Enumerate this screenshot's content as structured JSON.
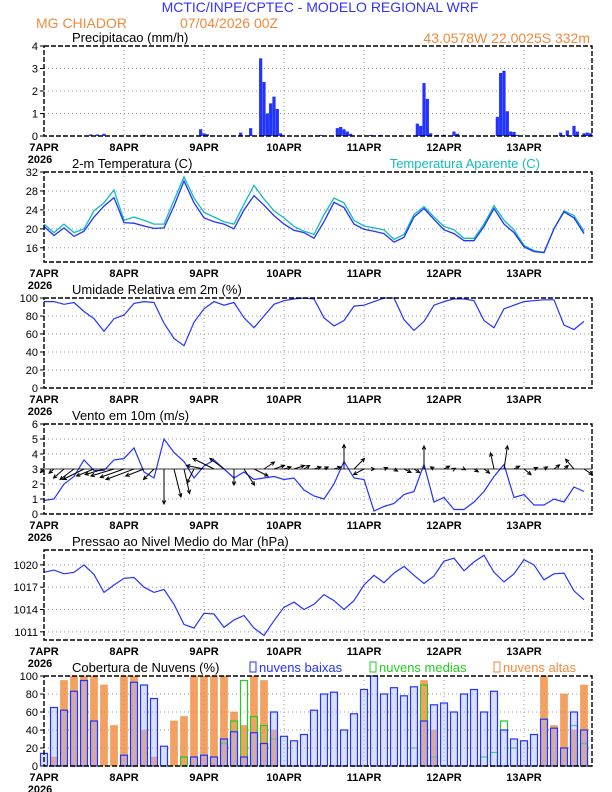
{
  "header": {
    "title": "MCTIC/INPE/CPTEC - MODELO REGIONAL WRF",
    "location": "MG CHIADOR",
    "run": "07/04/2026 00Z",
    "coords": "43.0578W 22.0025S 332m",
    "title_color": "#3333ff",
    "sub_color": "#f08a3c"
  },
  "chart_data": {
    "x_tick_labels": [
      "7APR",
      "8APR",
      "9APR",
      "10APR",
      "11APR",
      "12APR",
      "13APR"
    ],
    "x_year_label": "2026",
    "x_range": [
      "2026-04-07T00Z",
      "2026-04-13T20Z"
    ],
    "grid": true,
    "times": [
      "2026-04-07T00Z",
      "2026-04-07T03Z",
      "2026-04-07T06Z",
      "2026-04-07T09Z",
      "2026-04-07T12Z",
      "2026-04-07T15Z",
      "2026-04-07T18Z",
      "2026-04-07T21Z",
      "2026-04-08T00Z",
      "2026-04-08T03Z",
      "2026-04-08T06Z",
      "2026-04-08T09Z",
      "2026-04-08T12Z",
      "2026-04-08T15Z",
      "2026-04-08T18Z",
      "2026-04-08T21Z",
      "2026-04-09T00Z",
      "2026-04-09T03Z",
      "2026-04-09T06Z",
      "2026-04-09T09Z",
      "2026-04-09T12Z",
      "2026-04-09T15Z",
      "2026-04-09T18Z",
      "2026-04-09T21Z",
      "2026-04-10T00Z",
      "2026-04-10T03Z",
      "2026-04-10T06Z",
      "2026-04-10T09Z",
      "2026-04-10T12Z",
      "2026-04-10T15Z",
      "2026-04-10T18Z",
      "2026-04-10T21Z",
      "2026-04-11T00Z",
      "2026-04-11T03Z",
      "2026-04-11T06Z",
      "2026-04-11T09Z",
      "2026-04-11T12Z",
      "2026-04-11T15Z",
      "2026-04-11T18Z",
      "2026-04-11T21Z",
      "2026-04-12T00Z",
      "2026-04-12T03Z",
      "2026-04-12T06Z",
      "2026-04-12T09Z",
      "2026-04-12T12Z",
      "2026-04-12T15Z",
      "2026-04-12T18Z",
      "2026-04-12T21Z",
      "2026-04-13T00Z",
      "2026-04-13T03Z",
      "2026-04-13T06Z",
      "2026-04-13T09Z",
      "2026-04-13T12Z",
      "2026-04-13T15Z",
      "2026-04-13T18Z"
    ],
    "precip": {
      "type": "bar",
      "title": "Precipitacao (mm/h)",
      "ylim": [
        0,
        4
      ],
      "yticks": [
        "0",
        "1",
        "2",
        "3",
        "4"
      ],
      "color": "#2233ff",
      "points": [
        [
          "2026-04-07T14Z",
          0.07
        ],
        [
          "2026-04-07T16Z",
          0.07
        ],
        [
          "2026-04-07T18Z",
          0.1
        ],
        [
          "2026-04-08T06Z",
          0.05
        ],
        [
          "2026-04-08T23Z",
          0.3
        ],
        [
          "2026-04-09T00Z",
          0.12
        ],
        [
          "2026-04-09T01Z",
          0.08
        ],
        [
          "2026-04-09T11Z",
          0.15
        ],
        [
          "2026-04-09T14Z",
          0.35
        ],
        [
          "2026-04-09T17Z",
          3.45
        ],
        [
          "2026-04-09T18Z",
          2.4
        ],
        [
          "2026-04-09T19Z",
          1.0
        ],
        [
          "2026-04-09T20Z",
          1.45
        ],
        [
          "2026-04-09T21Z",
          1.75
        ],
        [
          "2026-04-09T22Z",
          1.2
        ],
        [
          "2026-04-09T23Z",
          0.12
        ],
        [
          "2026-04-10T11Z",
          0.05
        ],
        [
          "2026-04-10T16Z",
          0.35
        ],
        [
          "2026-04-10T17Z",
          0.4
        ],
        [
          "2026-04-10T18Z",
          0.3
        ],
        [
          "2026-04-10T19Z",
          0.2
        ],
        [
          "2026-04-10T20Z",
          0.1
        ],
        [
          "2026-04-11T02Z",
          0.05
        ],
        [
          "2026-04-11T05Z",
          0.05
        ],
        [
          "2026-04-11T16Z",
          0.55
        ],
        [
          "2026-04-11T17Z",
          0.45
        ],
        [
          "2026-04-11T18Z",
          2.35
        ],
        [
          "2026-04-11T19Z",
          1.65
        ],
        [
          "2026-04-11T20Z",
          0.12
        ],
        [
          "2026-04-11T22Z",
          0.05
        ],
        [
          "2026-04-12T00Z",
          0.05
        ],
        [
          "2026-04-12T03Z",
          0.2
        ],
        [
          "2026-04-12T04Z",
          0.1
        ],
        [
          "2026-04-12T16Z",
          0.85
        ],
        [
          "2026-04-12T17Z",
          2.8
        ],
        [
          "2026-04-12T18Z",
          2.9
        ],
        [
          "2026-04-12T19Z",
          1.1
        ],
        [
          "2026-04-12T20Z",
          0.2
        ],
        [
          "2026-04-12T21Z",
          0.18
        ],
        [
          "2026-04-12T22Z",
          0.05
        ],
        [
          "2026-04-13T11Z",
          0.15
        ],
        [
          "2026-04-13T13Z",
          0.25
        ],
        [
          "2026-04-13T15Z",
          0.45
        ],
        [
          "2026-04-13T16Z",
          0.2
        ],
        [
          "2026-04-13T18Z",
          0.12
        ],
        [
          "2026-04-13T19Z",
          0.15
        ],
        [
          "2026-04-13T20Z",
          0.12
        ]
      ]
    },
    "temperature": {
      "type": "line",
      "title": "2-m Temperatura (C)",
      "ylim": [
        13,
        32
      ],
      "yticks": [
        "16",
        "20",
        "24",
        "28",
        "32"
      ],
      "series": [
        {
          "name": "2-m Temperatura (C)",
          "color": "#2233ff",
          "values": [
            20.5,
            18.6,
            20.2,
            18.4,
            19.5,
            22.5,
            24.8,
            26.6,
            21.3,
            21.2,
            20.6,
            20.1,
            20.2,
            24.8,
            30.1,
            25.5,
            22.3,
            21.5,
            21.0,
            20.0,
            24.0,
            27.0,
            25.0,
            22.8,
            21.0,
            19.7,
            19.2,
            18.0,
            21.5,
            25.6,
            24.5,
            21.0,
            19.9,
            19.5,
            19.0,
            17.2,
            18.2,
            22.5,
            24.3,
            22.0,
            19.8,
            19.0,
            17.5,
            17.5,
            20.5,
            24.3,
            21.0,
            19.2,
            16.2,
            15.2,
            15.0,
            20.0,
            23.6,
            22.3,
            19.0
          ]
        },
        {
          "name": "Temperatura Aparente (C)",
          "color": "#11bbbb",
          "values": [
            21.0,
            19.2,
            21.0,
            19.2,
            20.0,
            23.8,
            25.5,
            28.2,
            21.8,
            22.5,
            21.8,
            21.0,
            21.0,
            26.0,
            31.0,
            26.5,
            23.5,
            22.5,
            21.5,
            21.0,
            25.2,
            29.2,
            26.3,
            23.8,
            22.3,
            20.5,
            19.5,
            18.8,
            23.0,
            26.5,
            25.5,
            21.8,
            20.6,
            20.2,
            19.8,
            17.8,
            18.8,
            23.0,
            24.7,
            22.5,
            20.5,
            19.8,
            18.0,
            18.0,
            21.0,
            24.9,
            21.8,
            19.8,
            16.5,
            15.4,
            15.0,
            20.0,
            23.8,
            22.8,
            19.5
          ]
        }
      ]
    },
    "humidity": {
      "type": "line",
      "title": "Umidade Relativa em 2m (%)",
      "ylim": [
        0,
        100
      ],
      "yticks": [
        "0",
        "20",
        "40",
        "60",
        "80",
        "100"
      ],
      "color": "#2233ff",
      "values": [
        96,
        96,
        93,
        95,
        85,
        77,
        63,
        77,
        81,
        94,
        96,
        95,
        72,
        55,
        47,
        73,
        88,
        96,
        92,
        95,
        78,
        67,
        80,
        93,
        97,
        99,
        100,
        99,
        78,
        69,
        75,
        91,
        92,
        96,
        100,
        100,
        76,
        64,
        74,
        92,
        96,
        99,
        99,
        97,
        75,
        67,
        88,
        92,
        96,
        97,
        98,
        98,
        70,
        65,
        74
      ]
    },
    "wind": {
      "type": "line",
      "title": "Vento em 10m (m/s)",
      "ylim": [
        0,
        6
      ],
      "yticks": [
        "0",
        "1",
        "2",
        "3",
        "4",
        "5",
        "6"
      ],
      "color": "#2233ff",
      "speed": [
        0.9,
        1.0,
        2.0,
        2.5,
        3.6,
        2.9,
        2.9,
        3.6,
        3.7,
        4.4,
        2.8,
        2.4,
        5.0,
        4.1,
        3.5,
        2.4,
        3.2,
        3.6,
        3.0,
        2.4,
        2.8,
        2.3,
        2.4,
        2.5,
        2.3,
        2.4,
        1.6,
        1.2,
        1.0,
        2.0,
        3.5,
        2.4,
        2.3,
        0.2,
        0.5,
        0.7,
        1.3,
        1.5,
        3.3,
        0.8,
        1.1,
        0.3,
        0.3,
        0.8,
        1.5,
        2.5,
        3.3,
        1.1,
        1.3,
        0.6,
        0.6,
        1.0,
        0.8,
        1.8,
        1.5
      ],
      "vector_baseline": 3,
      "u": [
        -0.5,
        -0.7,
        -1.5,
        -2,
        -3,
        -2.5,
        -2.7,
        -3.3,
        -3.4,
        -4,
        -2.6,
        -1.5,
        0,
        1,
        0.8,
        -1,
        -2.5,
        -3,
        -2,
        0,
        1.5,
        2,
        1.5,
        1.5,
        1,
        1.5,
        0.8,
        1,
        0.6,
        1,
        0,
        1.5,
        -1.5,
        0.1,
        0.5,
        0.5,
        1,
        0.8,
        0,
        -0.5,
        0.8,
        0.2,
        0.2,
        0.6,
        0.8,
        -0.5,
        0.5,
        0.8,
        1,
        0.5,
        0.5,
        0.8,
        0.6,
        -1.2,
        1.2
      ],
      "v": [
        -0.5,
        -0.6,
        -1.3,
        -1.5,
        -1.5,
        -1,
        -0.8,
        -1,
        -1.2,
        -1.5,
        -1,
        -1.5,
        -5,
        -4,
        -3.5,
        -2,
        0.5,
        1.5,
        1.5,
        -2.3,
        -2.3,
        -1,
        1,
        0.5,
        0.3,
        0.5,
        0.5,
        0.3,
        0.3,
        0.3,
        3.5,
        1.5,
        -0.8,
        0,
        0.2,
        -0.3,
        -0.5,
        -0.5,
        3.3,
        0.3,
        0.4,
        0.1,
        -0.1,
        -0.4,
        -0.6,
        2.3,
        3.3,
        0.4,
        -0.8,
        0.2,
        0.3,
        0.6,
        0.5,
        1.4,
        -0.8
      ]
    },
    "pressure": {
      "type": "line",
      "title": "Pressao ao Nivel Medio do Mar (hPa)",
      "ylim": [
        1009.9,
        1022
      ],
      "yticks": [
        "1011",
        "1014",
        "1017",
        "1020"
      ],
      "color": "#2233ff",
      "values": [
        1019,
        1019.3,
        1018.8,
        1019,
        1020,
        1018.7,
        1016.3,
        1017.3,
        1018.2,
        1018.3,
        1017,
        1016.3,
        1016.7,
        1014.7,
        1012,
        1011.5,
        1013.5,
        1013.4,
        1011.6,
        1012.6,
        1013.2,
        1011.5,
        1010.5,
        1012.5,
        1014.3,
        1015,
        1014,
        1014.7,
        1016,
        1015.2,
        1014,
        1015.2,
        1017.3,
        1018.6,
        1017.6,
        1018.9,
        1019.8,
        1018.6,
        1017.5,
        1018.5,
        1020.5,
        1020.9,
        1019.2,
        1020.4,
        1021.3,
        1019,
        1017.7,
        1018.8,
        1020.7,
        1020,
        1018,
        1018.8,
        1018.9,
        1016.5,
        1015.3
      ]
    },
    "clouds": {
      "type": "bar",
      "title": "Cobertura de Nuvens (%)",
      "ylim": [
        0,
        100
      ],
      "yticks": [
        "0",
        "20",
        "40",
        "60",
        "80",
        "100"
      ],
      "series": [
        {
          "name": "nuvens altas",
          "color": "#f08a3c",
          "values": [
            0,
            10,
            95,
            100,
            100,
            100,
            90,
            45,
            100,
            100,
            40,
            10,
            0,
            50,
            55,
            100,
            100,
            100,
            100,
            60,
            45,
            100,
            95,
            40,
            0,
            0,
            0,
            0,
            0,
            0,
            0,
            0,
            0,
            0,
            0,
            0,
            0,
            0,
            95,
            40,
            0,
            0,
            0,
            0,
            0,
            0,
            0,
            0,
            0,
            0,
            100,
            45,
            80,
            40,
            90
          ]
        },
        {
          "name": "nuvens medias",
          "color": "#22cc22",
          "values": [
            0,
            0,
            0,
            0,
            0,
            0,
            0,
            0,
            0,
            0,
            0,
            0,
            0,
            0,
            10,
            0,
            0,
            0,
            25,
            50,
            95,
            55,
            45,
            30,
            0,
            0,
            0,
            0,
            0,
            0,
            0,
            0,
            0,
            0,
            0,
            0,
            0,
            20,
            90,
            10,
            0,
            0,
            0,
            0,
            10,
            15,
            50,
            20,
            0,
            0,
            0,
            0,
            0,
            45,
            25
          ]
        },
        {
          "name": "nuvens baixas",
          "color": "#2233ff",
          "values": [
            14,
            65,
            62,
            83,
            95,
            50,
            0,
            0,
            12,
            93,
            90,
            75,
            22,
            0,
            0,
            10,
            12,
            10,
            30,
            38,
            10,
            37,
            25,
            60,
            33,
            28,
            35,
            62,
            80,
            82,
            40,
            58,
            85,
            100,
            80,
            87,
            78,
            88,
            50,
            68,
            70,
            60,
            80,
            85,
            60,
            83,
            40,
            30,
            28,
            35,
            52,
            42,
            20,
            60,
            40
          ]
        }
      ]
    }
  }
}
